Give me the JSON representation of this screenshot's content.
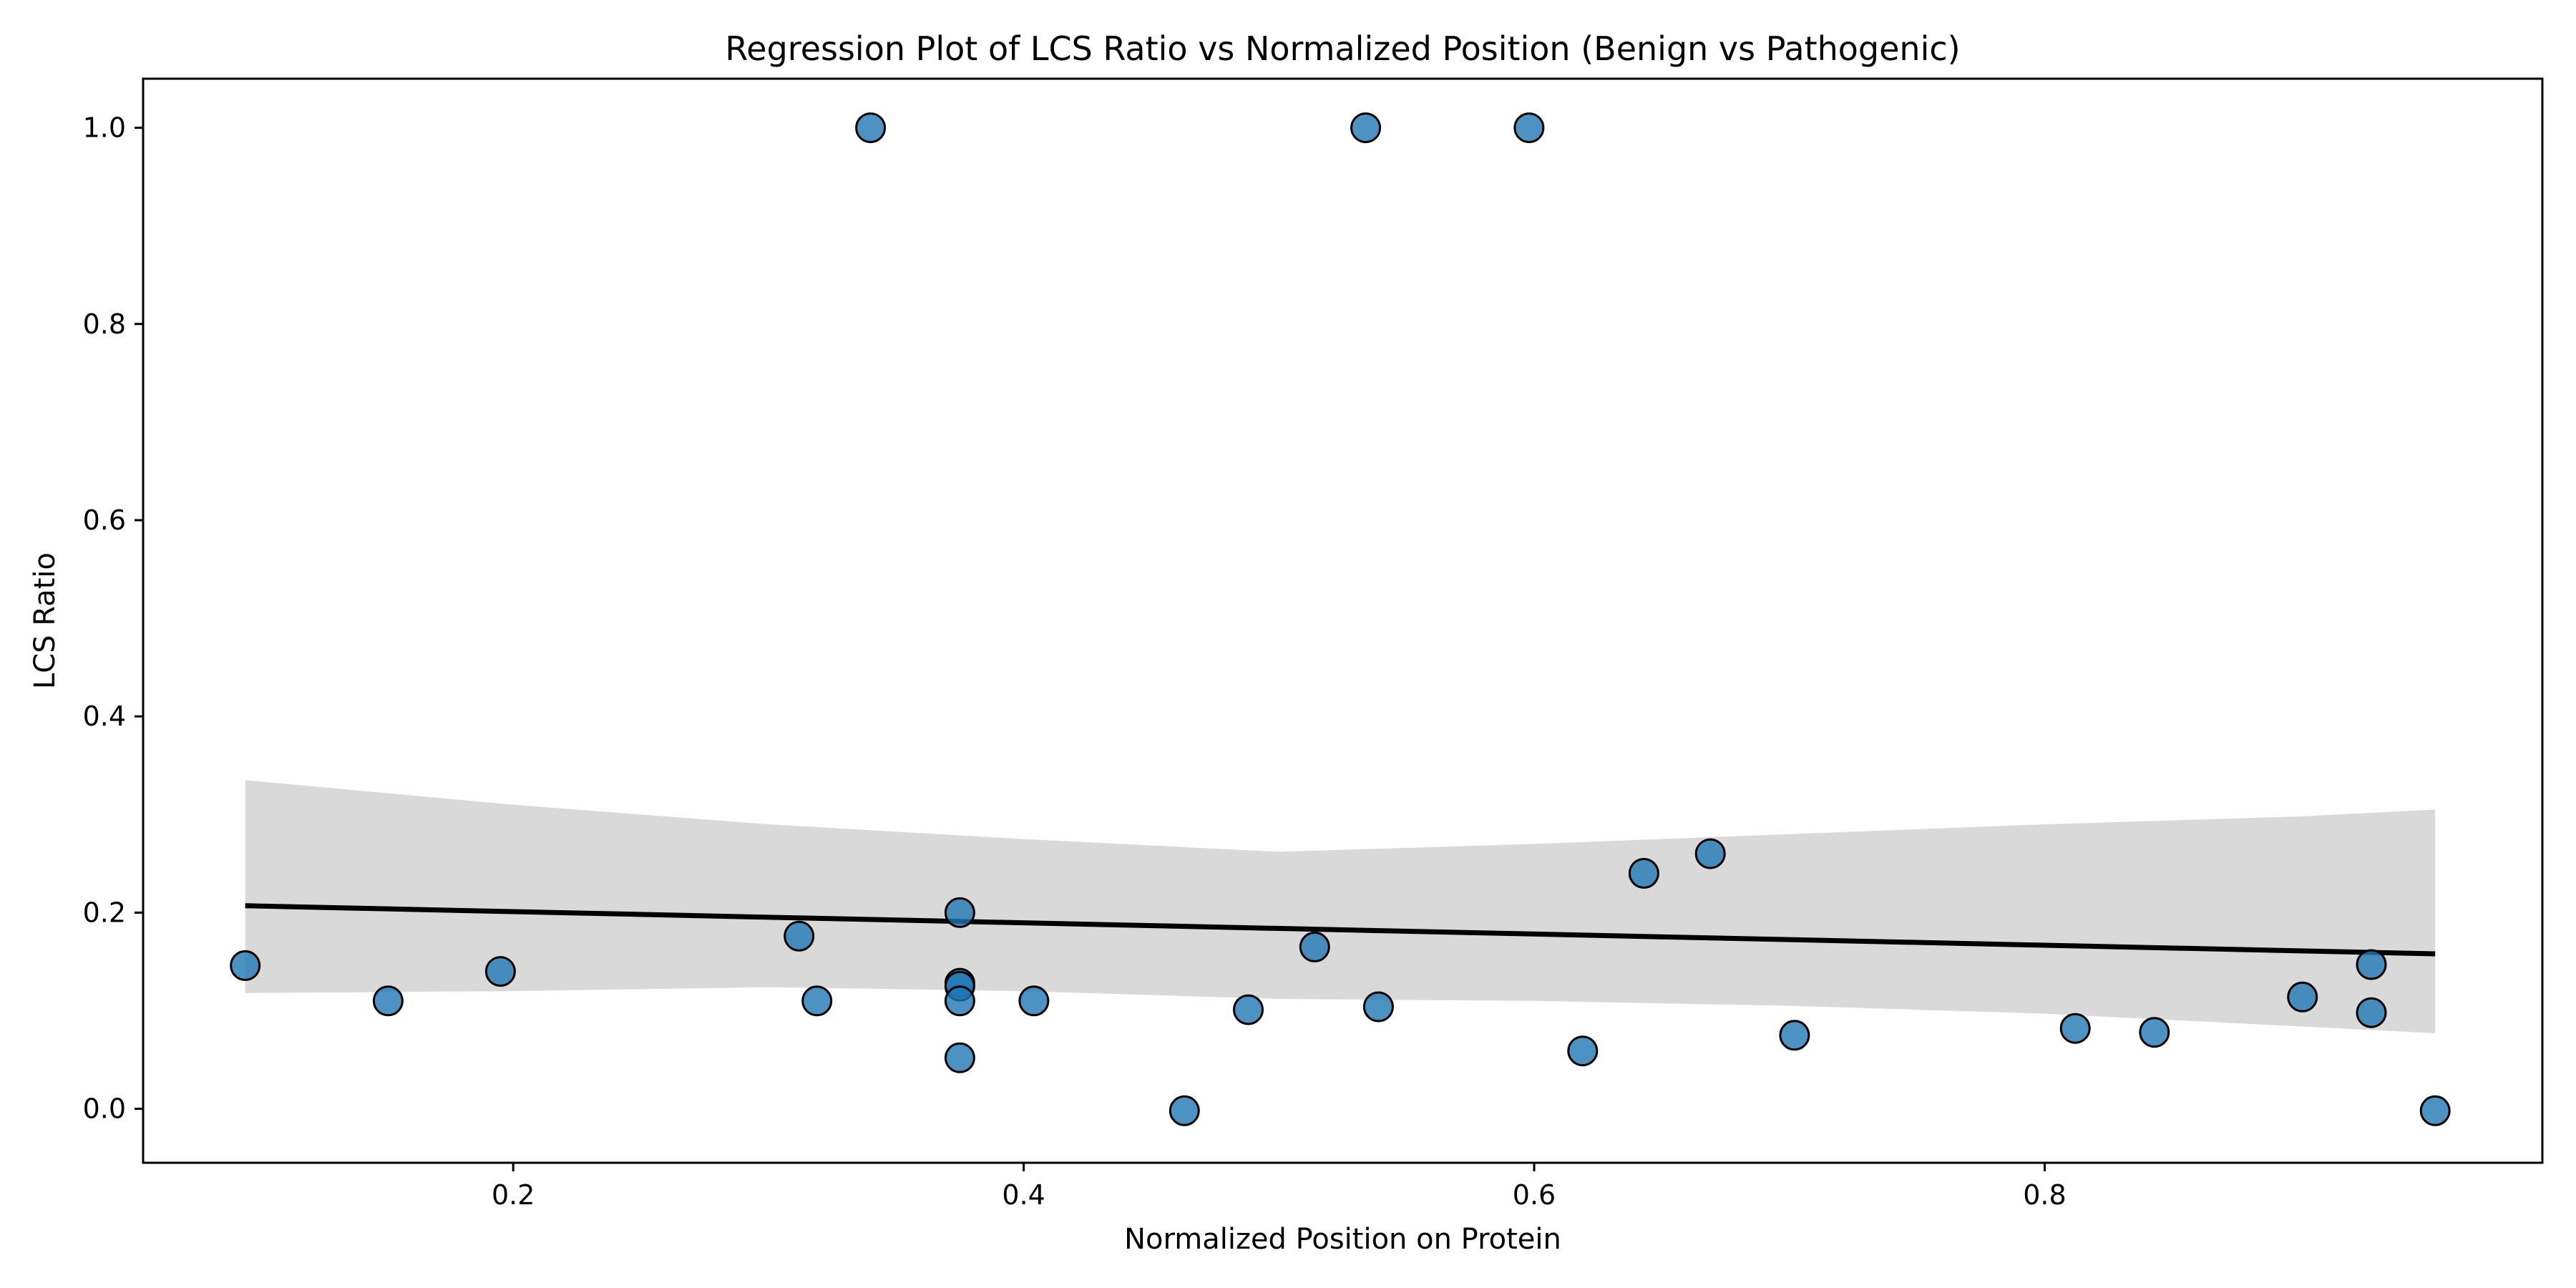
{
  "chart_data": {
    "type": "scatter",
    "title": "Regression Plot of LCS Ratio vs Normalized Position (Benign vs Pathogenic)",
    "xlabel": "Normalized Position on Protein",
    "ylabel": "LCS Ratio",
    "xlim": [
      0.055,
      0.995
    ],
    "ylim": [
      -0.055,
      1.05
    ],
    "xticks": [
      0.2,
      0.4,
      0.6,
      0.8
    ],
    "xtick_labels": [
      "0.2",
      "0.4",
      "0.6",
      "0.8"
    ],
    "yticks": [
      0.0,
      0.2,
      0.4,
      0.6,
      0.8,
      1.0
    ],
    "ytick_labels": [
      "0.0",
      "0.2",
      "0.4",
      "0.6",
      "0.8",
      "1.0"
    ],
    "grid": false,
    "series": [
      {
        "points": [
          {
            "x": 0.095,
            "y": 0.146
          },
          {
            "x": 0.151,
            "y": 0.11
          },
          {
            "x": 0.195,
            "y": 0.14
          },
          {
            "x": 0.312,
            "y": 0.176
          },
          {
            "x": 0.319,
            "y": 0.11
          },
          {
            "x": 0.34,
            "y": 1.0
          },
          {
            "x": 0.375,
            "y": 0.2
          },
          {
            "x": 0.375,
            "y": 0.128
          },
          {
            "x": 0.375,
            "y": 0.125
          },
          {
            "x": 0.375,
            "y": 0.11
          },
          {
            "x": 0.375,
            "y": 0.052
          },
          {
            "x": 0.404,
            "y": 0.11
          },
          {
            "x": 0.463,
            "y": -0.002
          },
          {
            "x": 0.488,
            "y": 0.101
          },
          {
            "x": 0.514,
            "y": 0.165
          },
          {
            "x": 0.534,
            "y": 1.0
          },
          {
            "x": 0.539,
            "y": 0.104
          },
          {
            "x": 0.598,
            "y": 1.0
          },
          {
            "x": 0.619,
            "y": 0.059
          },
          {
            "x": 0.643,
            "y": 0.24
          },
          {
            "x": 0.669,
            "y": 0.26
          },
          {
            "x": 0.702,
            "y": 0.075
          },
          {
            "x": 0.812,
            "y": 0.082
          },
          {
            "x": 0.843,
            "y": 0.078
          },
          {
            "x": 0.901,
            "y": 0.114
          },
          {
            "x": 0.928,
            "y": 0.147
          },
          {
            "x": 0.928,
            "y": 0.098
          },
          {
            "x": 0.953,
            "y": -0.002
          }
        ],
        "color": "#1f77b4"
      }
    ],
    "regression_line": {
      "x": [
        0.095,
        0.953
      ],
      "y": [
        0.207,
        0.158
      ],
      "color": "#000000"
    },
    "confidence_band": {
      "x": [
        0.095,
        0.2,
        0.3,
        0.4,
        0.5,
        0.6,
        0.7,
        0.8,
        0.9,
        0.953
      ],
      "upper": [
        0.335,
        0.31,
        0.29,
        0.275,
        0.262,
        0.27,
        0.28,
        0.29,
        0.298,
        0.305
      ],
      "lower": [
        0.118,
        0.12,
        0.124,
        0.12,
        0.112,
        0.11,
        0.105,
        0.097,
        0.084,
        0.077
      ],
      "color": "#d9d9d9"
    }
  }
}
